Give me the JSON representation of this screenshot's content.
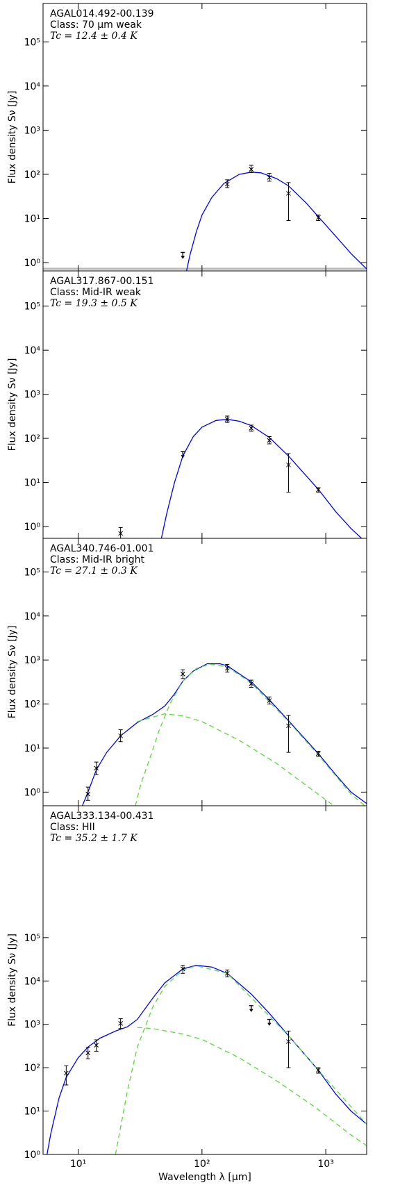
{
  "chart_data": [
    {
      "type": "line",
      "title": "AGAL014.492-00.139",
      "subtitle": "Class: 70 μm weak",
      "annotation": "Tc = 12.4 ± 0.4 K",
      "y_label": "Flux density Sν [Jy]",
      "log_x": true,
      "log_y": true,
      "xlim": [
        5.2,
        2140
      ],
      "ylim": [
        0.65,
        740000
      ],
      "xticks": [
        10,
        100,
        1000
      ],
      "yticks": [
        {
          "value": 1,
          "label": "10⁰"
        },
        {
          "value": 10,
          "label": "10¹"
        },
        {
          "value": 100,
          "label": "10²"
        },
        {
          "value": 1000,
          "label": "10³"
        },
        {
          "value": 10000,
          "label": "10⁴"
        },
        {
          "value": 100000,
          "label": "10⁵"
        }
      ],
      "points": {
        "x": [
          160,
          250,
          350,
          500,
          870
        ],
        "y": [
          60,
          130,
          85,
          37,
          10.5
        ],
        "ylow": [
          50,
          110,
          70,
          9,
          9
        ],
        "yhigh": [
          75,
          160,
          105,
          65,
          12
        ]
      },
      "limits": {
        "x": [
          70
        ],
        "y": [
          1.7
        ]
      },
      "curves": [
        {
          "style": "solid",
          "color": "#0000ff",
          "x": [
            75,
            80,
            90,
            100,
            120,
            150,
            200,
            250,
            300,
            400,
            500,
            700,
            870,
            1200,
            1600,
            2140
          ],
          "y": [
            0.65,
            1.5,
            5,
            12,
            30,
            62,
            100,
            112,
            108,
            80,
            55,
            22,
            11,
            4,
            1.6,
            0.72
          ]
        }
      ]
    },
    {
      "type": "line",
      "title": "AGAL317.867-00.151",
      "subtitle": "Class: Mid-IR weak",
      "annotation": "Tc = 19.3 ± 0.5 K",
      "y_label": "Flux density Sν [Jy]",
      "log_x": true,
      "log_y": true,
      "xlim": [
        5.2,
        2140
      ],
      "ylim": [
        0.54,
        630000
      ],
      "xticks": [
        10,
        100,
        1000
      ],
      "yticks": [
        {
          "value": 1,
          "label": "10⁰"
        },
        {
          "value": 10,
          "label": "10¹"
        },
        {
          "value": 100,
          "label": "10²"
        },
        {
          "value": 1000,
          "label": "10³"
        },
        {
          "value": 10000,
          "label": "10⁴"
        },
        {
          "value": 100000,
          "label": "10⁵"
        }
      ],
      "points": {
        "x": [
          22,
          160,
          250,
          350,
          500,
          870
        ],
        "y": [
          0.7,
          270,
          170,
          90,
          25,
          6.8
        ],
        "ylow": [
          0.5,
          230,
          145,
          75,
          6,
          6
        ],
        "yhigh": [
          0.95,
          320,
          200,
          110,
          45,
          7.6
        ]
      },
      "limits": {
        "x": [
          70
        ],
        "y": [
          50
        ]
      },
      "curves": [
        {
          "style": "solid",
          "color": "#0000ff",
          "x": [
            47,
            52,
            60,
            70,
            85,
            100,
            130,
            160,
            200,
            250,
            350,
            500,
            870,
            1200,
            1600,
            2140
          ],
          "y": [
            0.54,
            2,
            10,
            40,
            110,
            180,
            255,
            270,
            245,
            195,
            105,
            40,
            7,
            2.2,
            0.9,
            0.42
          ]
        }
      ]
    },
    {
      "type": "line",
      "title": "AGAL340.746-01.001",
      "subtitle": "Class: Mid-IR bright",
      "annotation": "Tc = 27.1 ± 0.3 K",
      "y_label": "Flux density Sν [Jy]",
      "log_x": true,
      "log_y": true,
      "xlim": [
        5.2,
        2140
      ],
      "ylim": [
        0.49,
        580000
      ],
      "xticks": [
        10,
        100,
        1000
      ],
      "yticks": [
        {
          "value": 1,
          "label": "10⁰"
        },
        {
          "value": 10,
          "label": "10¹"
        },
        {
          "value": 100,
          "label": "10²"
        },
        {
          "value": 1000,
          "label": "10³"
        },
        {
          "value": 10000,
          "label": "10⁴"
        },
        {
          "value": 100000,
          "label": "10⁵"
        }
      ],
      "points": {
        "x": [
          12,
          14,
          22,
          70,
          160,
          250,
          350,
          500,
          870
        ],
        "y": [
          0.9,
          3.5,
          19,
          480,
          650,
          290,
          120,
          32,
          7.5
        ],
        "ylow": [
          0.65,
          2.5,
          14,
          380,
          530,
          240,
          100,
          8,
          6.5
        ],
        "yhigh": [
          1.3,
          4.8,
          26,
          600,
          800,
          350,
          145,
          55,
          8.5
        ]
      },
      "limits": {
        "x": [],
        "y": []
      },
      "curves": [
        {
          "style": "solid",
          "color": "#0000ff",
          "x": [
            10.8,
            12,
            14,
            17,
            22,
            30,
            40,
            50,
            60,
            70,
            85,
            110,
            140,
            160,
            250,
            350,
            500,
            870,
            1200,
            1600,
            2140
          ],
          "y": [
            0.49,
            1,
            3.2,
            8,
            19,
            38,
            58,
            90,
            170,
            330,
            560,
            820,
            820,
            740,
            320,
            125,
            42,
            7.5,
            2.5,
            1,
            0.55
          ]
        },
        {
          "style": "dashed",
          "color": "#55dd33",
          "x": [
            29,
            32,
            38,
            45,
            55,
            70,
            90,
            115,
            160,
            250,
            500,
            870,
            1600,
            2140
          ],
          "y": [
            0.49,
            1.5,
            6,
            25,
            100,
            330,
            640,
            800,
            700,
            300,
            40,
            7,
            0.9,
            0.45
          ]
        },
        {
          "style": "dashed",
          "color": "#55dd33",
          "x": [
            30,
            50,
            70,
            100,
            200,
            400,
            700,
            1150
          ],
          "y": [
            40,
            60,
            54,
            40,
            15,
            4.5,
            1.4,
            0.5
          ]
        }
      ]
    },
    {
      "type": "line",
      "title": "AGAL333.134-00.431",
      "subtitle": "Class: HII",
      "annotation": "Tc = 35.2 ± 1.7 K",
      "y_label": "Flux density Sν [Jy]",
      "x_label": "Wavelength λ [μm]",
      "log_x": true,
      "log_y": true,
      "xlim": [
        5.2,
        2140
      ],
      "ylim": [
        1,
        110000000
      ],
      "xticks": [
        {
          "value": 10,
          "label": "10¹"
        },
        {
          "value": 100,
          "label": "10²"
        },
        {
          "value": 1000,
          "label": "10³"
        }
      ],
      "yticks": [
        {
          "value": 1,
          "label": "10⁰"
        },
        {
          "value": 10,
          "label": "10¹"
        },
        {
          "value": 100,
          "label": "10²"
        },
        {
          "value": 1000,
          "label": "10³"
        },
        {
          "value": 10000,
          "label": "10⁴"
        },
        {
          "value": 100000,
          "label": "10⁵"
        }
      ],
      "points": {
        "x": [
          8,
          12,
          14,
          22,
          70,
          160,
          500,
          870
        ],
        "y": [
          75,
          220,
          330,
          1050,
          19000,
          15000,
          400,
          88
        ],
        "ylow": [
          40,
          160,
          240,
          800,
          15000,
          12500,
          100,
          75
        ],
        "yhigh": [
          110,
          290,
          440,
          1350,
          23000,
          18000,
          700,
          100
        ]
      },
      "limits": {
        "x": [
          250,
          350
        ],
        "y": [
          2700,
          1300
        ]
      },
      "curves": [
        {
          "style": "solid",
          "color": "#0000ff",
          "x": [
            5.6,
            6,
            7,
            8,
            10,
            12,
            15,
            20,
            25,
            30,
            40,
            50,
            70,
            90,
            120,
            160,
            250,
            350,
            500,
            870,
            1200,
            1600,
            2140
          ],
          "y": [
            1,
            3,
            20,
            60,
            170,
            300,
            480,
            700,
            880,
            1300,
            4000,
            9000,
            19000,
            23000,
            21000,
            15000,
            5000,
            1800,
            550,
            88,
            25,
            10,
            5
          ]
        },
        {
          "style": "dashed",
          "color": "#55dd33",
          "x": [
            20,
            25,
            30,
            40,
            50,
            70,
            90,
            160,
            500,
            870,
            2140
          ],
          "y": [
            1,
            30,
            300,
            2500,
            7500,
            18000,
            22500,
            15000,
            550,
            88,
            5
          ]
        },
        {
          "style": "dashed",
          "color": "#55dd33",
          "x": [
            30,
            40,
            70,
            100,
            200,
            400,
            800,
            1600,
            2140
          ],
          "y": [
            850,
            800,
            600,
            450,
            170,
            50,
            13,
            2.8,
            1.6
          ]
        }
      ]
    }
  ]
}
